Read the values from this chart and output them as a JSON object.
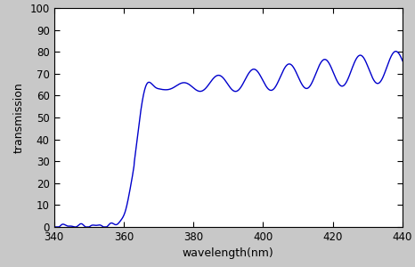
{
  "title": "",
  "xlabel": "wavelength(nm)",
  "ylabel": "transmission",
  "xlim": [
    340,
    440
  ],
  "ylim": [
    0,
    100
  ],
  "xticks": [
    340,
    360,
    380,
    400,
    420,
    440
  ],
  "yticks": [
    0,
    10,
    20,
    30,
    40,
    50,
    60,
    70,
    80,
    90,
    100
  ],
  "line_color": "#0000CC",
  "line_width": 1.0,
  "fig_background": "#c8c8c8",
  "plot_background": "#ffffff"
}
